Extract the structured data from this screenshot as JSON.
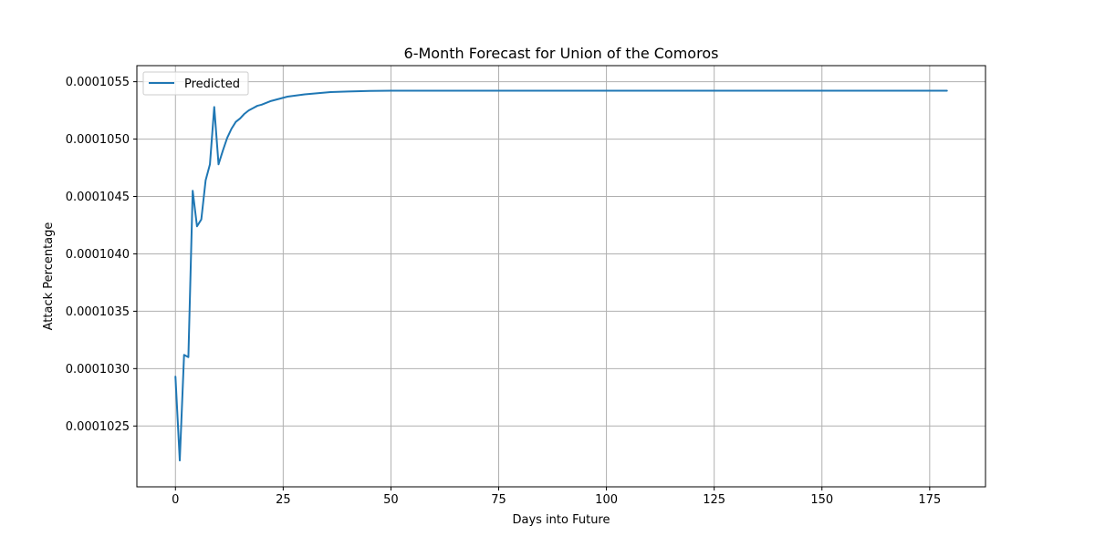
{
  "chart_data": {
    "type": "line",
    "title": "6-Month Forecast for Union of the Comoros",
    "xlabel": "Days into Future",
    "ylabel": "Attack Percentage",
    "xlim": [
      -8.95,
      187.95
    ],
    "ylim": [
      0.00010197,
      0.00010564
    ],
    "x_ticks": [
      0,
      25,
      50,
      75,
      100,
      125,
      150,
      175
    ],
    "y_ticks": [
      0.0001025,
      0.000103,
      0.0001035,
      0.000104,
      0.0001045,
      0.000105,
      0.0001055
    ],
    "y_tick_labels": [
      "0.0001025",
      "0.0001030",
      "0.0001035",
      "0.0001040",
      "0.0001045",
      "0.0001050",
      "0.0001055"
    ],
    "grid": true,
    "legend": "upper-left",
    "colors": {
      "series": "#1f77b4",
      "grid": "#b0b0b0"
    },
    "series": [
      {
        "name": "Predicted",
        "x": [
          0,
          1,
          2,
          3,
          4,
          5,
          6,
          7,
          8,
          9,
          10,
          11,
          12,
          13,
          14,
          15,
          16,
          17,
          18,
          19,
          20,
          22,
          24,
          26,
          28,
          30,
          33,
          36,
          40,
          45,
          50,
          60,
          75,
          100,
          125,
          150,
          179
        ],
        "y": [
          0.00010293,
          0.0001022,
          0.00010312,
          0.0001031,
          0.00010455,
          0.00010424,
          0.0001043,
          0.00010464,
          0.00010478,
          0.00010528,
          0.00010478,
          0.0001049,
          0.00010501,
          0.00010509,
          0.00010515,
          0.00010518,
          0.00010522,
          0.00010525,
          0.00010527,
          0.00010529,
          0.0001053,
          0.00010533,
          0.00010535,
          0.00010537,
          0.00010538,
          0.00010539,
          0.0001054,
          0.00010541,
          0.000105415,
          0.00010542,
          0.000105422,
          0.000105422,
          0.000105422,
          0.000105422,
          0.000105422,
          0.000105422,
          0.000105422
        ]
      }
    ]
  }
}
